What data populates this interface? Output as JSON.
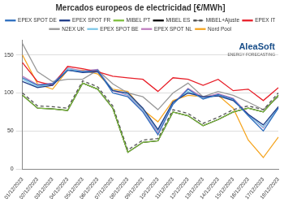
{
  "chart_data": {
    "type": "line",
    "title": "Mercados europeos de electricidad [€/MWh]",
    "annotations": [
      "AleaSoft",
      "ENERGY FORECASTING"
    ],
    "categories": [
      "01/12/2023",
      "02/12/2023",
      "03/12/2023",
      "04/12/2023",
      "05/12/2023",
      "06/12/2023",
      "07/12/2023",
      "08/12/2023",
      "09/12/2023",
      "10/12/2023",
      "11/12/2023",
      "12/12/2023",
      "13/12/2023",
      "14/12/2023",
      "15/12/2023",
      "16/12/2023",
      "17/12/2023",
      "18/12/2023"
    ],
    "series": [
      {
        "name": "EPEX SPOT DE",
        "color": "#2e6fbf",
        "values": [
          120,
          110,
          112,
          130,
          128,
          130,
          100,
          95,
          75,
          45,
          85,
          105,
          92,
          98,
          92,
          70,
          50,
          80
        ]
      },
      {
        "name": "EPEX SPOT FR",
        "color": "#1f3c88",
        "values": [
          115,
          107,
          110,
          130,
          127,
          128,
          103,
          100,
          80,
          52,
          88,
          100,
          95,
          96,
          90,
          72,
          58,
          82
        ]
      },
      {
        "name": "MIBEL PT",
        "color": "#7fbf3f",
        "values": [
          97,
          80,
          79,
          77,
          113,
          105,
          80,
          22,
          35,
          37,
          75,
          70,
          57,
          65,
          75,
          80,
          75,
          97
        ]
      },
      {
        "name": "MIBEL ES",
        "color": "#000000",
        "values": [
          97,
          80,
          79,
          77,
          113,
          105,
          80,
          22,
          35,
          37,
          75,
          70,
          57,
          65,
          75,
          80,
          75,
          97
        ]
      },
      {
        "name": "MIBEL+Ajuste",
        "color": "#555555",
        "line_style": "dashed",
        "values": [
          100,
          83,
          82,
          80,
          116,
          108,
          83,
          25,
          38,
          40,
          78,
          73,
          60,
          68,
          78,
          83,
          78,
          100
        ]
      },
      {
        "name": "EPEX IT",
        "color": "#e8202a",
        "values": [
          140,
          115,
          110,
          135,
          132,
          128,
          122,
          120,
          118,
          102,
          120,
          118,
          110,
          118,
          103,
          105,
          90,
          107
        ]
      },
      {
        "name": "N2EX UK",
        "color": "#9a9a9a",
        "values": [
          165,
          128,
          115,
          118,
          118,
          130,
          112,
          100,
          95,
          78,
          100,
          113,
          95,
          102,
          97,
          88,
          78,
          95
        ]
      },
      {
        "name": "EPEX SPOT BE",
        "color": "#7fc8e8",
        "values": [
          118,
          108,
          112,
          132,
          128,
          129,
          104,
          98,
          78,
          50,
          87,
          102,
          93,
          97,
          91,
          71,
          55,
          80
        ]
      },
      {
        "name": "EPEX SPOT NL",
        "color": "#c080c0",
        "values": [
          122,
          111,
          113,
          133,
          129,
          131,
          103,
          97,
          77,
          48,
          86,
          106,
          94,
          99,
          93,
          72,
          54,
          81
        ]
      },
      {
        "name": "Nord Pool",
        "color": "#f5a623",
        "values": [
          150,
          112,
          105,
          130,
          130,
          125,
          105,
          102,
          78,
          62,
          90,
          97,
          95,
          97,
          80,
          38,
          15,
          42
        ]
      }
    ],
    "ylim": [
      0,
      170
    ],
    "yticks": [
      0,
      50,
      100,
      150
    ],
    "grid": true,
    "legend": "top"
  }
}
